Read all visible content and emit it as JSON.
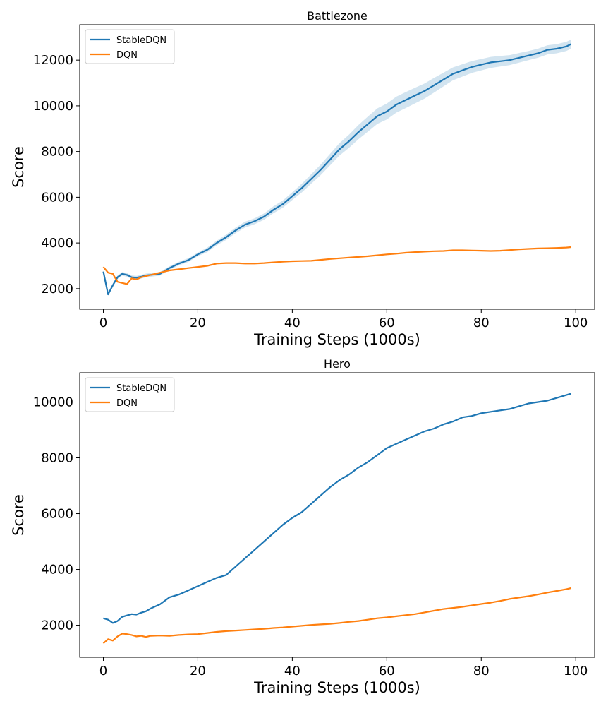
{
  "chart_data": [
    {
      "type": "line",
      "title": "Battlezone",
      "xlabel": "Training Steps (1000s)",
      "ylabel": "Score",
      "xlim": [
        -5,
        104
      ],
      "ylim": [
        1100,
        13550
      ],
      "xticks": [
        0,
        20,
        40,
        60,
        80,
        100
      ],
      "yticks": [
        2000,
        4000,
        6000,
        8000,
        10000,
        12000
      ],
      "legend": "top-left",
      "grid": false,
      "series": [
        {
          "name": "StableDQN",
          "color": "#1f77b4",
          "x": [
            0,
            1,
            2,
            3,
            4,
            5,
            6,
            7,
            8,
            9,
            10,
            12,
            14,
            16,
            18,
            20,
            22,
            24,
            26,
            28,
            30,
            32,
            34,
            36,
            38,
            40,
            42,
            44,
            46,
            48,
            50,
            52,
            54,
            56,
            58,
            60,
            62,
            64,
            66,
            68,
            70,
            72,
            74,
            76,
            78,
            80,
            82,
            84,
            86,
            88,
            90,
            92,
            94,
            96,
            98,
            99
          ],
          "y": [
            2750,
            1750,
            2150,
            2500,
            2650,
            2600,
            2500,
            2480,
            2520,
            2580,
            2600,
            2650,
            2900,
            3100,
            3250,
            3500,
            3700,
            4000,
            4250,
            4550,
            4800,
            4950,
            5150,
            5450,
            5700,
            6050,
            6400,
            6800,
            7200,
            7650,
            8100,
            8450,
            8850,
            9200,
            9550,
            9750,
            10050,
            10250,
            10450,
            10650,
            10900,
            11150,
            11400,
            11550,
            11700,
            11800,
            11900,
            11950,
            12000,
            12100,
            12200,
            12300,
            12450,
            12500,
            12600,
            12700
          ],
          "band": [
            0,
            60,
            80,
            80,
            80,
            80,
            80,
            80,
            80,
            80,
            80,
            80,
            80,
            80,
            80,
            80,
            100,
            100,
            120,
            120,
            130,
            130,
            140,
            150,
            160,
            170,
            190,
            210,
            230,
            250,
            270,
            290,
            310,
            330,
            340,
            350,
            350,
            350,
            340,
            330,
            320,
            300,
            280,
            270,
            260,
            250,
            240,
            230,
            220,
            210,
            200,
            200,
            200,
            200,
            200,
            200
          ]
        },
        {
          "name": "DQN",
          "color": "#ff7f0e",
          "x": [
            0,
            1,
            2,
            3,
            4,
            5,
            6,
            7,
            8,
            9,
            10,
            12,
            14,
            16,
            18,
            20,
            22,
            24,
            26,
            28,
            30,
            32,
            34,
            36,
            38,
            40,
            42,
            44,
            46,
            48,
            50,
            52,
            54,
            56,
            58,
            60,
            62,
            64,
            66,
            68,
            70,
            72,
            74,
            76,
            78,
            80,
            82,
            84,
            86,
            88,
            90,
            92,
            94,
            96,
            98,
            99
          ],
          "y": [
            2950,
            2700,
            2650,
            2300,
            2250,
            2200,
            2450,
            2400,
            2500,
            2550,
            2600,
            2700,
            2800,
            2850,
            2900,
            2950,
            3000,
            3100,
            3120,
            3120,
            3100,
            3100,
            3120,
            3150,
            3180,
            3200,
            3210,
            3220,
            3260,
            3300,
            3330,
            3360,
            3390,
            3420,
            3460,
            3500,
            3530,
            3570,
            3600,
            3620,
            3640,
            3650,
            3680,
            3680,
            3670,
            3660,
            3650,
            3660,
            3690,
            3720,
            3740,
            3760,
            3770,
            3780,
            3800,
            3820
          ]
        }
      ]
    },
    {
      "type": "line",
      "title": "Hero",
      "xlabel": "Training Steps (1000s)",
      "ylabel": "Score",
      "xlim": [
        -5,
        104
      ],
      "ylim": [
        850,
        11050
      ],
      "xticks": [
        0,
        20,
        40,
        60,
        80,
        100
      ],
      "yticks": [
        2000,
        4000,
        6000,
        8000,
        10000
      ],
      "legend": "top-left",
      "grid": false,
      "series": [
        {
          "name": "StableDQN",
          "color": "#1f77b4",
          "x": [
            0,
            1,
            2,
            3,
            4,
            5,
            6,
            7,
            8,
            9,
            10,
            12,
            14,
            16,
            18,
            20,
            22,
            24,
            26,
            28,
            30,
            32,
            34,
            36,
            38,
            40,
            42,
            44,
            46,
            48,
            50,
            52,
            54,
            56,
            58,
            60,
            62,
            64,
            66,
            68,
            70,
            72,
            74,
            76,
            78,
            80,
            82,
            84,
            86,
            88,
            90,
            92,
            94,
            96,
            98,
            99
          ],
          "y": [
            2250,
            2200,
            2080,
            2150,
            2300,
            2350,
            2400,
            2380,
            2450,
            2500,
            2600,
            2750,
            3000,
            3100,
            3250,
            3400,
            3550,
            3700,
            3800,
            4100,
            4400,
            4700,
            5000,
            5300,
            5600,
            5850,
            6050,
            6350,
            6650,
            6950,
            7200,
            7400,
            7650,
            7850,
            8100,
            8350,
            8500,
            8650,
            8800,
            8950,
            9050,
            9200,
            9300,
            9450,
            9500,
            9600,
            9650,
            9700,
            9750,
            9850,
            9950,
            10000,
            10050,
            10150,
            10250,
            10300
          ]
        },
        {
          "name": "DQN",
          "color": "#ff7f0e",
          "x": [
            0,
            1,
            2,
            3,
            4,
            5,
            6,
            7,
            8,
            9,
            10,
            12,
            14,
            16,
            18,
            20,
            22,
            24,
            26,
            28,
            30,
            32,
            34,
            36,
            38,
            40,
            42,
            44,
            46,
            48,
            50,
            52,
            54,
            56,
            58,
            60,
            62,
            64,
            66,
            68,
            70,
            72,
            74,
            76,
            78,
            80,
            82,
            84,
            86,
            88,
            90,
            92,
            94,
            96,
            98,
            99
          ],
          "y": [
            1350,
            1500,
            1450,
            1600,
            1700,
            1680,
            1650,
            1600,
            1620,
            1580,
            1620,
            1630,
            1620,
            1650,
            1670,
            1680,
            1720,
            1760,
            1790,
            1810,
            1830,
            1850,
            1870,
            1900,
            1920,
            1950,
            1980,
            2010,
            2030,
            2050,
            2080,
            2120,
            2150,
            2200,
            2250,
            2280,
            2320,
            2360,
            2400,
            2460,
            2520,
            2580,
            2620,
            2660,
            2710,
            2760,
            2810,
            2870,
            2940,
            2990,
            3040,
            3100,
            3170,
            3230,
            3290,
            3330
          ]
        }
      ]
    }
  ]
}
